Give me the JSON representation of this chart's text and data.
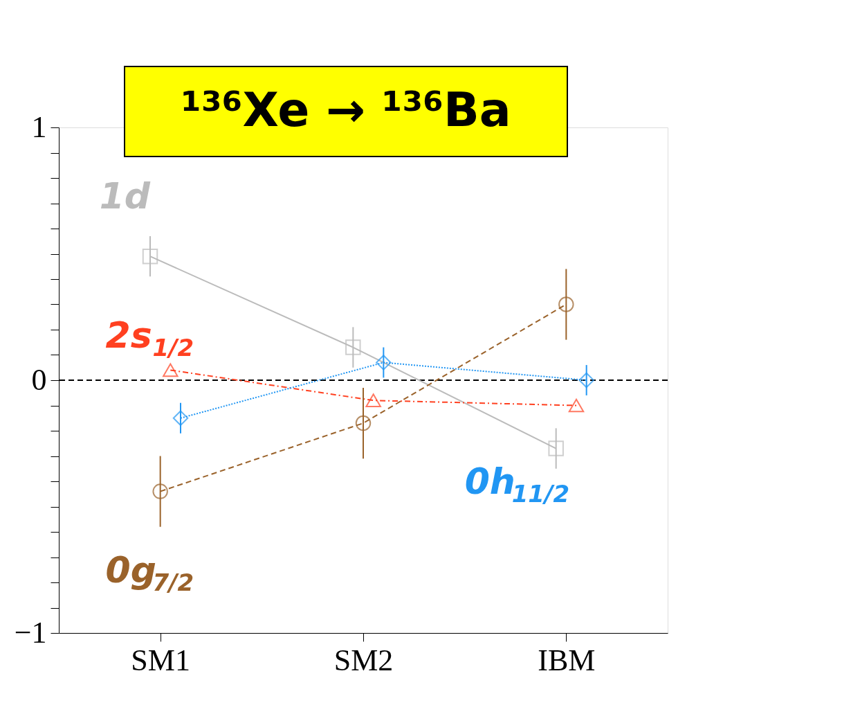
{
  "chart_data": {
    "type": "line",
    "title": "¹³⁶Xe → ¹³⁶Ba",
    "categories": [
      "SM1",
      "SM2",
      "IBM"
    ],
    "ylim": [
      -1,
      1
    ],
    "yticks": [
      {
        "value": -1,
        "label": "−1"
      },
      {
        "value": -0.9,
        "label": null
      },
      {
        "value": -0.8,
        "label": null
      },
      {
        "value": -0.7,
        "label": null
      },
      {
        "value": -0.6,
        "label": null
      },
      {
        "value": -0.5,
        "label": null
      },
      {
        "value": -0.4,
        "label": null
      },
      {
        "value": -0.3,
        "label": null
      },
      {
        "value": -0.2,
        "label": null
      },
      {
        "value": -0.1,
        "label": null
      },
      0,
      {
        "value": 0.1,
        "label": null
      },
      {
        "value": 0.2,
        "label": null
      },
      {
        "value": 0.3,
        "label": null
      },
      {
        "value": 0.4,
        "label": null
      },
      {
        "value": 0.5,
        "label": null
      },
      {
        "value": 0.6,
        "label": null
      },
      {
        "value": 0.7,
        "label": null
      },
      {
        "value": 0.8,
        "label": null
      },
      {
        "value": 0.9,
        "label": null
      },
      1
    ],
    "grid": false,
    "legend": false,
    "ref_lines": [
      {
        "axis": "y",
        "value": 0,
        "label": null,
        "color": "#000000",
        "line_style": "dashed"
      }
    ],
    "series": [
      {
        "name": "1d",
        "color": "#bbbbbb",
        "values": [
          0.49,
          0.13,
          -0.27
        ],
        "errors": [
          0.08,
          0.08,
          0.08
        ],
        "marker": "square",
        "line_style": "solid"
      },
      {
        "name": "2s$_{1/2}$",
        "color": "#ff4020",
        "values": [
          0.04,
          -0.08,
          -0.1
        ],
        "marker": "triangle",
        "line_style": "dashdot"
      },
      {
        "name": "0h$_{11/2}$",
        "color": "#2196f3",
        "values": [
          -0.15,
          0.07,
          0.0
        ],
        "errors": [
          0.06,
          0.06,
          0.06
        ],
        "marker": "diamond",
        "line_style": "dotted"
      },
      {
        "name": "0g$_{7/2}$",
        "color": "#9a622a",
        "values": [
          -0.44,
          -0.17,
          0.3
        ],
        "errors": [
          0.14,
          0.14,
          0.14
        ],
        "marker": "circle",
        "line_style": "dashed"
      }
    ]
  }
}
